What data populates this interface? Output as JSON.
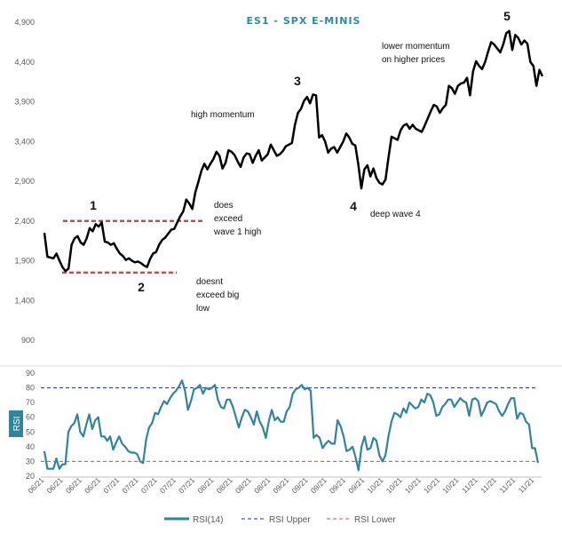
{
  "chart_data": [
    {
      "type": "line",
      "title": "ES1 - SPX E-MINIS",
      "y_ticks": [
        900,
        1400,
        1900,
        2400,
        2900,
        3400,
        3900,
        4400,
        4900
      ],
      "ylim": [
        900,
        4900
      ],
      "series": [
        {
          "name": "ES1",
          "color": "#000000",
          "values": [
            2250,
            1950,
            1940,
            1930,
            1990,
            1900,
            1820,
            1770,
            1800,
            2100,
            2180,
            2210,
            2130,
            2100,
            2180,
            2310,
            2270,
            2360,
            2330,
            2380,
            2140,
            2130,
            2100,
            2120,
            2050,
            1990,
            1960,
            1910,
            1930,
            1900,
            1880,
            1890,
            1870,
            1840,
            1820,
            1920,
            1990,
            2010,
            2100,
            2160,
            2190,
            2240,
            2290,
            2300,
            2380,
            2460,
            2520,
            2670,
            2620,
            2550,
            2760,
            2890,
            3030,
            3120,
            3050,
            3120,
            3180,
            3270,
            3220,
            3060,
            3130,
            3290,
            3270,
            3230,
            3150,
            3080,
            3200,
            3250,
            3240,
            3130,
            3220,
            3290,
            3160,
            3200,
            3240,
            3360,
            3290,
            3220,
            3240,
            3280,
            3340,
            3360,
            3380,
            3610,
            3760,
            3810,
            3910,
            3960,
            3880,
            3990,
            3980,
            3450,
            3480,
            3400,
            3260,
            3310,
            3330,
            3260,
            3330,
            3400,
            3500,
            3450,
            3370,
            3350,
            3110,
            2810,
            3050,
            3100,
            2960,
            3060,
            2940,
            2880,
            2860,
            2920,
            3200,
            3460,
            3440,
            3420,
            3540,
            3600,
            3620,
            3560,
            3610,
            3560,
            3540,
            3520,
            3600,
            3690,
            3780,
            3860,
            3840,
            3760,
            3820,
            3860,
            4100,
            4070,
            4000,
            4100,
            4130,
            4140,
            4200,
            3980,
            4280,
            4410,
            4350,
            4310,
            4400,
            4530,
            4650,
            4620,
            4570,
            4520,
            4620,
            4760,
            4790,
            4550,
            4740,
            4700,
            4620,
            4670,
            4630,
            4400,
            4350,
            4100,
            4300,
            4220
          ]
        }
      ],
      "annotations": [
        "1",
        "2",
        "3",
        "4",
        "5",
        "does exceed wave 1 high",
        "doesnt exceed big low",
        "high momentum",
        "lower momentum on higher prices",
        "deep wave 4"
      ],
      "reference_lines": [
        {
          "y": 2400,
          "color": "#C0504D"
        },
        {
          "y": 1750,
          "color": "#C0504D"
        }
      ]
    },
    {
      "type": "line",
      "ylabel": "RSI",
      "y_ticks": [
        20,
        30,
        40,
        50,
        60,
        70,
        80,
        90
      ],
      "ylim": [
        20,
        90
      ],
      "x_ticks": [
        "06/21",
        "06/21",
        "06/21",
        "06/21",
        "07/21",
        "07/21",
        "07/21",
        "07/21",
        "07/21",
        "08/21",
        "08/21",
        "08/21",
        "08/21",
        "09/21",
        "09/21",
        "09/21",
        "09/21",
        "09/21",
        "10/21",
        "10/21",
        "10/21",
        "10/21",
        "10/21",
        "11/21",
        "11/21",
        "11/21",
        "11/21"
      ],
      "series": [
        {
          "name": "RSI(14)",
          "color": "#31849B",
          "values": [
            37,
            25,
            25,
            25,
            32,
            25,
            28,
            28,
            50,
            54,
            56,
            62,
            50,
            47,
            55,
            62,
            52,
            58,
            60,
            47,
            47,
            44,
            47,
            38,
            43,
            47,
            42,
            40,
            37,
            36,
            36,
            35,
            30,
            29,
            45,
            53,
            56,
            63,
            62,
            67,
            71,
            69,
            73,
            76,
            78,
            81,
            85,
            78,
            65,
            71,
            79,
            80,
            82,
            76,
            80,
            79,
            80,
            82,
            72,
            67,
            66,
            72,
            72,
            67,
            60,
            53,
            60,
            65,
            64,
            60,
            55,
            64,
            57,
            53,
            46,
            57,
            65,
            58,
            60,
            57,
            57,
            64,
            67,
            76,
            79,
            80,
            82,
            79,
            80,
            78,
            46,
            48,
            46,
            39,
            42,
            44,
            42,
            42,
            58,
            54,
            47,
            37,
            38,
            40,
            33,
            24,
            40,
            47,
            38,
            39,
            46,
            44,
            34,
            30,
            34,
            47,
            57,
            63,
            62,
            60,
            66,
            63,
            70,
            68,
            66,
            67,
            72,
            70,
            76,
            75,
            70,
            61,
            62,
            67,
            69,
            72,
            72,
            67,
            70,
            73,
            71,
            70,
            61,
            72,
            73,
            71,
            61,
            65,
            70,
            71,
            70,
            69,
            64,
            61,
            64,
            69,
            73,
            73,
            59,
            63,
            62,
            57,
            55,
            39,
            39,
            29
          ]
        },
        {
          "name": "RSI Upper",
          "color": "#1F2F8F",
          "dashed": true,
          "value": 80
        },
        {
          "name": "RSI Lower",
          "color": "#C0504D",
          "dashed": true,
          "value": 30
        }
      ]
    }
  ],
  "legend": {
    "rsi": "RSI(14)",
    "upper": "RSI Upper",
    "lower": "RSI Lower"
  },
  "colors": {
    "price": "#000000",
    "rsi": "#31849B",
    "upper": "#1F2F8F",
    "lower": "#C0504D",
    "ref": "#C0504D",
    "title": "#2E8B9A",
    "rsi_tab": "#31849B"
  }
}
